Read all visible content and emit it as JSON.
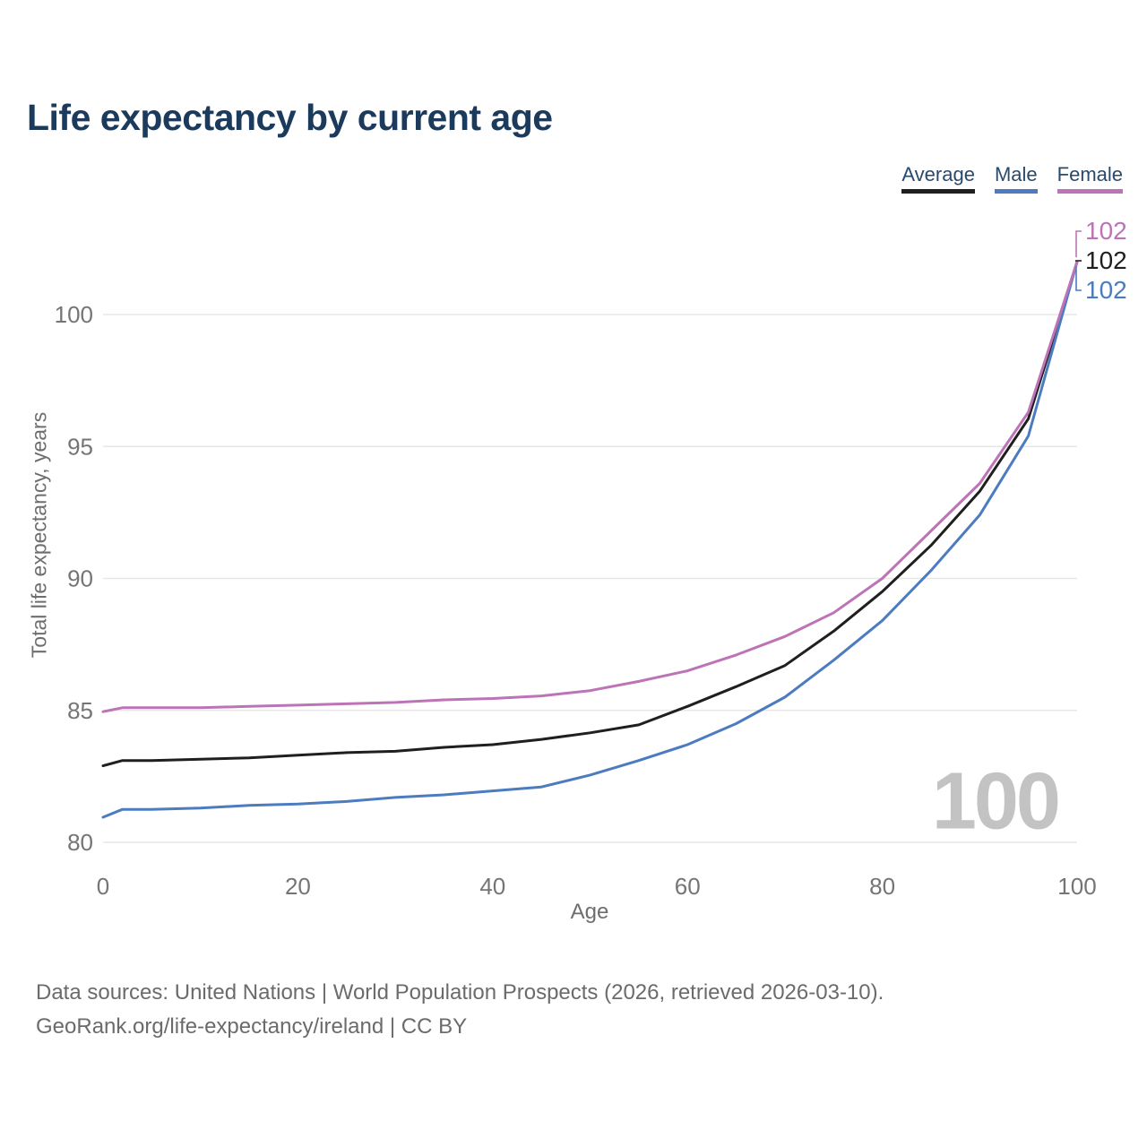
{
  "title": "Life expectancy by current age",
  "legend": [
    {
      "label": "Average",
      "color": "#1f1f1f"
    },
    {
      "label": "Male",
      "color": "#4c7bc0"
    },
    {
      "label": "Female",
      "color": "#bc74b7"
    }
  ],
  "axes": {
    "x_title": "Age",
    "y_title": "Total life expectancy, years"
  },
  "end_labels": {
    "female": "102",
    "average": "102",
    "male": "102"
  },
  "watermark": "100",
  "footer": {
    "line1": "Data sources: United Nations | World Population Prospects (2026, retrieved 2026-03-10).",
    "line2": "GeoRank.org/life-expectancy/ireland | CC BY"
  },
  "colors": {
    "title": "#1b3a5c",
    "average_line": "#1f1f1f",
    "male_line": "#4c7bc0",
    "female_line": "#bc74b7",
    "gridline": "#e7e7e7",
    "tick_text": "#757575",
    "axis_title_text": "#6e6e6e",
    "watermark_text": "#c3c3c3",
    "footer_text": "#6b6b6b"
  },
  "chart_data": {
    "type": "line",
    "title": "Life expectancy by current age",
    "xlabel": "Age",
    "ylabel": "Total life expectancy, years",
    "xlim": [
      0,
      100
    ],
    "ylim": [
      79.5,
      103
    ],
    "x_ticks": [
      0,
      20,
      40,
      60,
      80,
      100
    ],
    "y_ticks": [
      80,
      85,
      90,
      95,
      100
    ],
    "grid": "horizontal",
    "legend_position": "top-right",
    "x": [
      0,
      2,
      5,
      10,
      15,
      20,
      25,
      30,
      35,
      40,
      45,
      50,
      55,
      60,
      65,
      70,
      75,
      80,
      85,
      90,
      95,
      100
    ],
    "series": [
      {
        "name": "Average",
        "color": "#1f1f1f",
        "end_label": 102,
        "values": [
          82.9,
          83.1,
          83.1,
          83.15,
          83.2,
          83.3,
          83.4,
          83.45,
          83.6,
          83.7,
          83.9,
          84.15,
          84.45,
          85.15,
          85.9,
          86.7,
          88.0,
          89.5,
          91.25,
          93.3,
          96.05,
          102
        ]
      },
      {
        "name": "Male",
        "color": "#4c7bc0",
        "end_label": 102,
        "values": [
          80.95,
          81.25,
          81.25,
          81.3,
          81.4,
          81.45,
          81.55,
          81.7,
          81.8,
          81.95,
          82.1,
          82.55,
          83.1,
          83.7,
          84.5,
          85.5,
          86.9,
          88.4,
          90.3,
          92.4,
          95.4,
          102
        ]
      },
      {
        "name": "Female",
        "color": "#bc74b7",
        "end_label": 102,
        "values": [
          84.95,
          85.1,
          85.1,
          85.1,
          85.15,
          85.2,
          85.25,
          85.3,
          85.4,
          85.45,
          85.55,
          85.75,
          86.1,
          86.5,
          87.1,
          87.8,
          88.7,
          90.0,
          91.8,
          93.6,
          96.3,
          102
        ]
      }
    ]
  }
}
